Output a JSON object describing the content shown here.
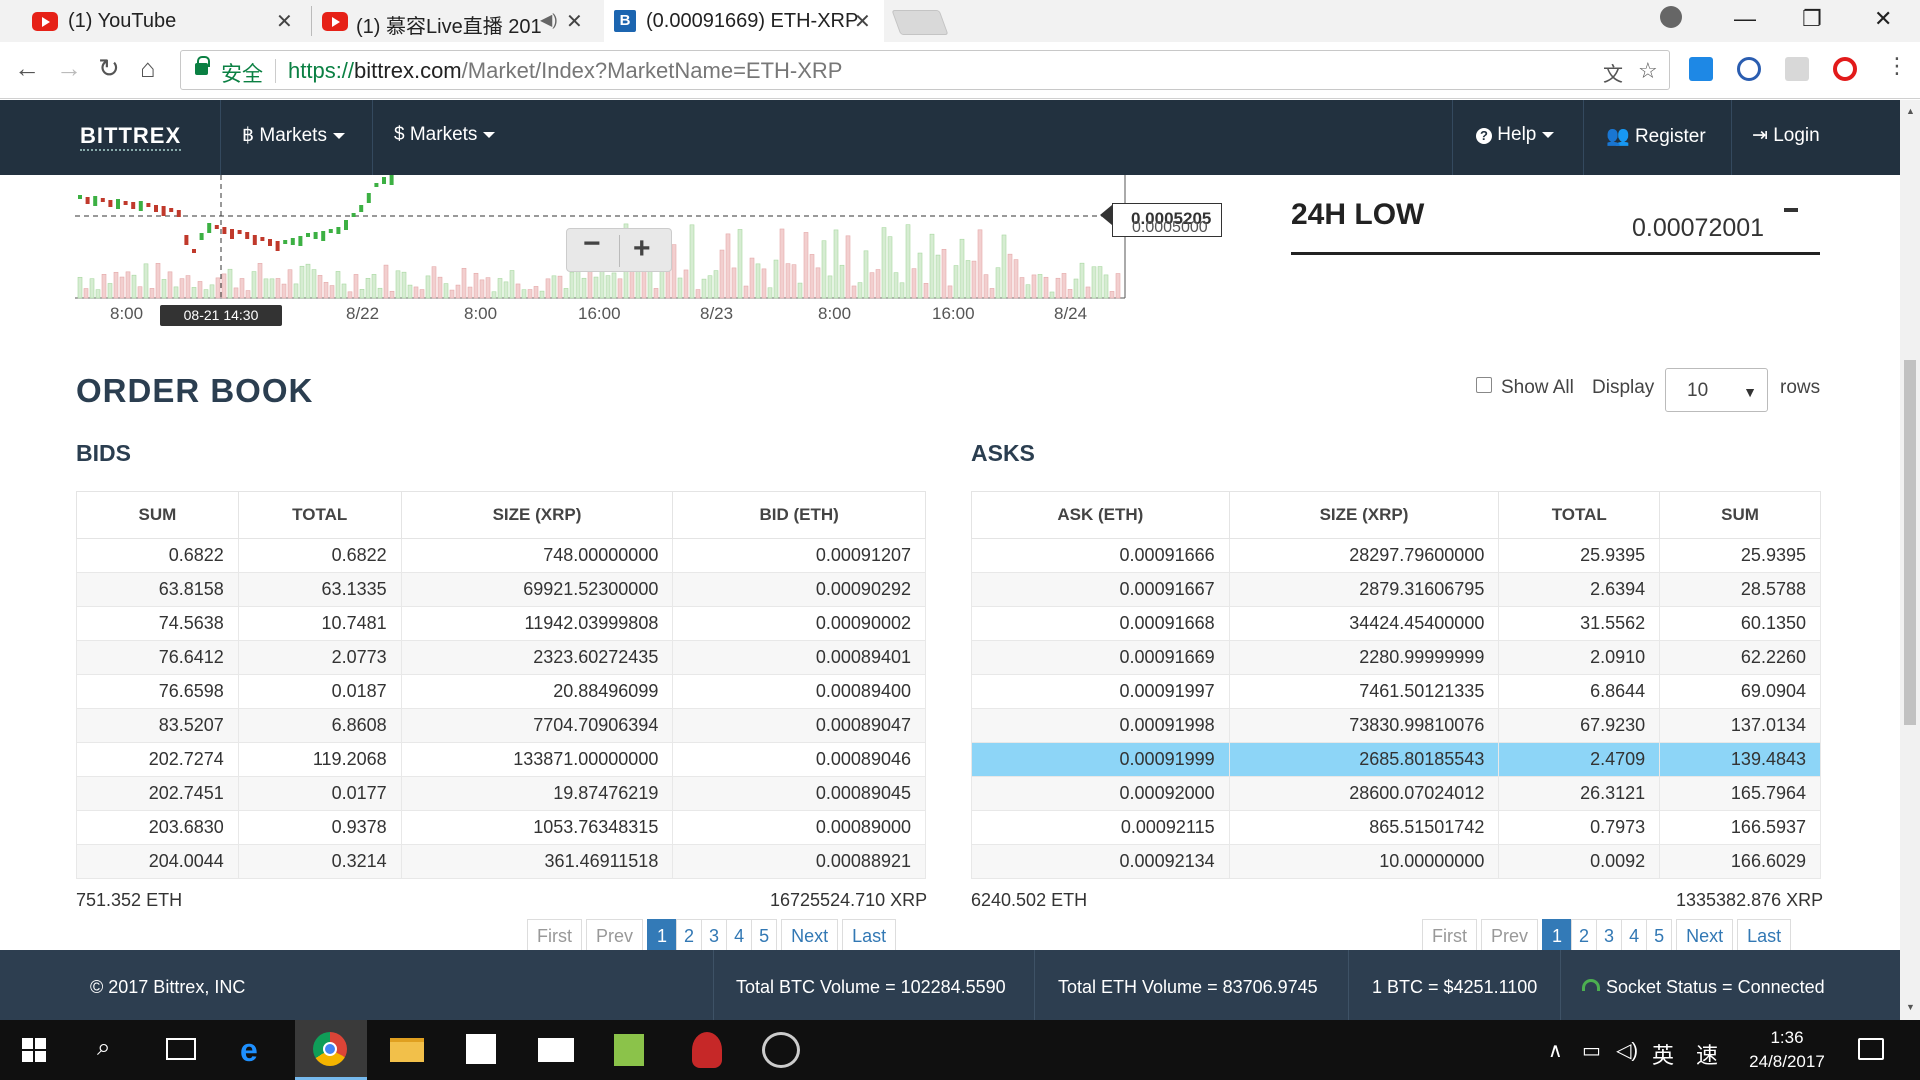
{
  "browser": {
    "tabs": [
      {
        "title": "(1) YouTube"
      },
      {
        "title": "(1) 慕容Live直播 201"
      },
      {
        "title": "(0.00091669) ETH-XRP"
      }
    ],
    "secure_label": "安全",
    "url_scheme": "https://",
    "url_host": "bittrex.com",
    "url_path": "/Market/Index?MarketName=ETH-XRP"
  },
  "navbar": {
    "brand": "BITTREX",
    "markets_btc": "Markets",
    "markets_usd": "Markets",
    "help": "Help",
    "register": "Register",
    "login": "Login"
  },
  "chart": {
    "price_label": "0.0005205",
    "price_label_2": "0.0005000",
    "x_ticks": [
      "8:00",
      "8/22",
      "8:00",
      "16:00",
      "8/23",
      "8:00",
      "16:00",
      "8/24"
    ],
    "crosshair_label": "08-21 14:30"
  },
  "stats": {
    "low_title": "24H LOW",
    "low_value": "0.00072001"
  },
  "orderbook": {
    "title": "ORDER BOOK",
    "show_all": "Show All",
    "display": "Display",
    "rows_value": "10",
    "rows_label": "rows",
    "bids": {
      "title": "BIDS",
      "headers": [
        "SUM",
        "TOTAL",
        "SIZE (XRP)",
        "BID (ETH)"
      ],
      "rows": [
        [
          "0.6822",
          "0.6822",
          "748.00000000",
          "0.00091207"
        ],
        [
          "63.8158",
          "63.1335",
          "69921.52300000",
          "0.00090292"
        ],
        [
          "74.5638",
          "10.7481",
          "11942.03999808",
          "0.00090002"
        ],
        [
          "76.6412",
          "2.0773",
          "2323.60272435",
          "0.00089401"
        ],
        [
          "76.6598",
          "0.0187",
          "20.88496099",
          "0.00089400"
        ],
        [
          "83.5207",
          "6.8608",
          "7704.70906394",
          "0.00089047"
        ],
        [
          "202.7274",
          "119.2068",
          "133871.00000000",
          "0.00089046"
        ],
        [
          "202.7451",
          "0.0177",
          "19.87476219",
          "0.00089045"
        ],
        [
          "203.6830",
          "0.9378",
          "1053.76348315",
          "0.00089000"
        ],
        [
          "204.0044",
          "0.3214",
          "361.46911518",
          "0.00088921"
        ]
      ],
      "total_left": "751.352 ETH",
      "total_right": "16725524.710 XRP"
    },
    "asks": {
      "title": "ASKS",
      "headers": [
        "ASK (ETH)",
        "SIZE (XRP)",
        "TOTAL",
        "SUM"
      ],
      "rows": [
        [
          "0.00091666",
          "28297.79600000",
          "25.9395",
          "25.9395"
        ],
        [
          "0.00091667",
          "2879.31606795",
          "2.6394",
          "28.5788"
        ],
        [
          "0.00091668",
          "34424.45400000",
          "31.5562",
          "60.1350"
        ],
        [
          "0.00091669",
          "2280.99999999",
          "2.0910",
          "62.2260"
        ],
        [
          "0.00091997",
          "7461.50121335",
          "6.8644",
          "69.0904"
        ],
        [
          "0.00091998",
          "73830.99810076",
          "67.9230",
          "137.0134"
        ],
        [
          "0.00091999",
          "2685.80185543",
          "2.4709",
          "139.4843"
        ],
        [
          "0.00092000",
          "28600.07024012",
          "26.3121",
          "165.7964"
        ],
        [
          "0.00092115",
          "865.51501742",
          "0.7973",
          "166.5937"
        ],
        [
          "0.00092134",
          "10.00000000",
          "0.0092",
          "166.6029"
        ]
      ],
      "total_left": "6240.502 ETH",
      "total_right": "1335382.876 XRP"
    },
    "pager": {
      "first": "First",
      "prev": "Prev",
      "pages": [
        "1",
        "2",
        "3",
        "4",
        "5"
      ],
      "next": "Next",
      "last": "Last"
    }
  },
  "footer": {
    "copyright": "© 2017 Bittrex, INC",
    "btc_volume": "Total BTC Volume = 102284.5590",
    "eth_volume": "Total ETH Volume = 83706.9745",
    "btc_price": "1 BTC = $4251.1100",
    "socket": "Socket Status = Connected"
  },
  "taskbar": {
    "ime_lang": "英",
    "ime_mode": "速",
    "time": "1:36",
    "date": "24/8/2017"
  },
  "colors": {
    "navbar_bg": "#22313f",
    "highlight_row": "#8dd5f7",
    "candle_up": "#3cb043",
    "candle_down": "#c0392b",
    "pager_active": "#337ab7"
  }
}
